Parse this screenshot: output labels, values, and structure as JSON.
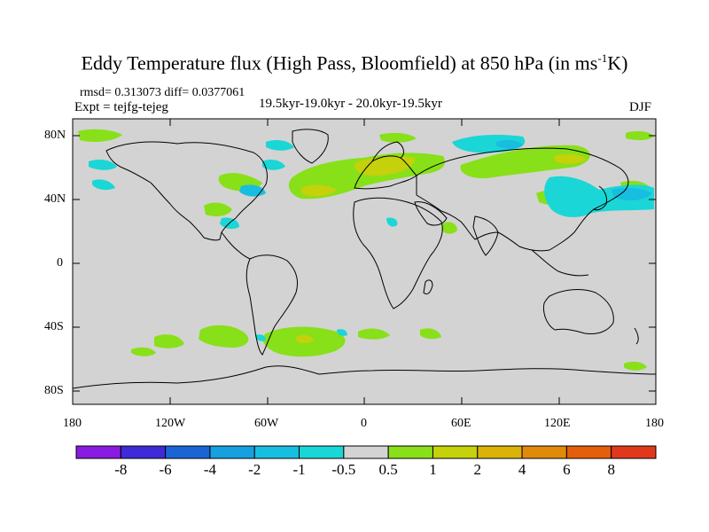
{
  "title": {
    "main": "Eddy Temperature flux (High Pass, Bloomfield) at 850 hPa (in ms",
    "sup": "-1",
    "tail": "K)"
  },
  "stats": {
    "line": "rmsd= 0.313073 diff= 0.0377061"
  },
  "experiment": {
    "label": "Expt = tejfg-tejeg"
  },
  "period": {
    "label": "19.5kyr-19.0kyr - 20.0kyr-19.5kyr"
  },
  "season": {
    "label": "DJF"
  },
  "axes": {
    "lat_ticks": [
      "80N",
      "40N",
      "0",
      "40S",
      "80S"
    ],
    "lon_ticks": [
      "180",
      "120W",
      "60W",
      "0",
      "60E",
      "120E",
      "180"
    ]
  },
  "colors": {
    "land_bg": "#d3d3d3",
    "coast": "#000000",
    "lightgreen": "#88e019",
    "yellowgreen": "#c4d10b",
    "cyan": "#1bd6d6",
    "skyblue": "#18bedf"
  },
  "colorbar": {
    "labels": [
      "-8",
      "-6",
      "-4",
      "-2",
      "-1",
      "-0.5",
      "0.5",
      "1",
      "2",
      "4",
      "6",
      "8"
    ],
    "colors": [
      "#8a1be0",
      "#3e2ad8",
      "#1a64d6",
      "#17a0df",
      "#18bedf",
      "#1bd6d6",
      "#d3d3d3",
      "#88e019",
      "#c4d10b",
      "#dab20a",
      "#e08a0c",
      "#e55e0c",
      "#e1381b"
    ]
  }
}
